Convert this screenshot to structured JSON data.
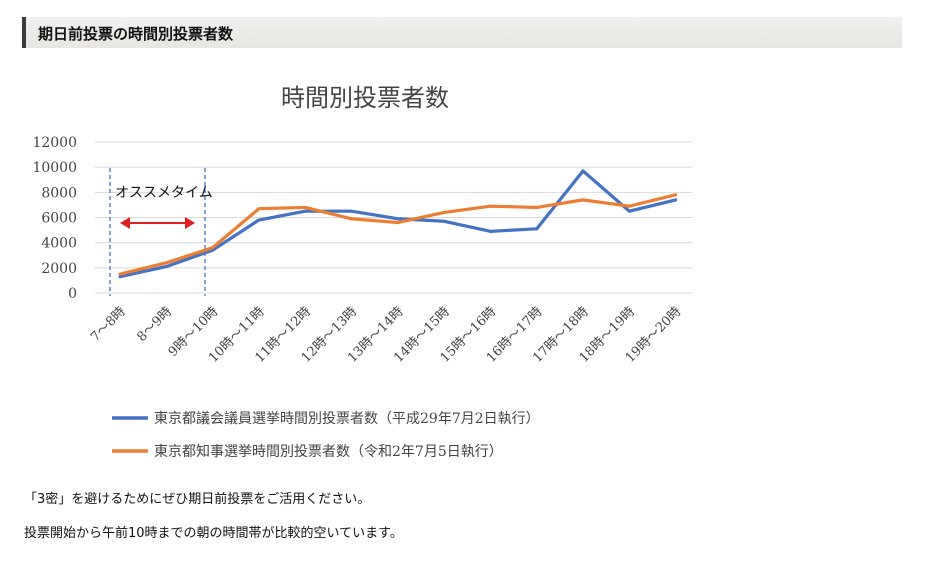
{
  "section": {
    "title": "期日前投票の時間別投票者数"
  },
  "chart_data": {
    "type": "line",
    "title": "時間別投票者数",
    "categories": [
      "7～8時",
      "8～9時",
      "9時～10時",
      "10時～11時",
      "11時～12時",
      "12時～13時",
      "13時～14時",
      "14時～15時",
      "15時～16時",
      "16時～17時",
      "17時～18時",
      "18時～19時",
      "19時～20時"
    ],
    "series": [
      {
        "name": "東京都議会議員選挙時間別投票者数（平成29年7月2日執行）",
        "color": "#4472c4",
        "values": [
          1300,
          2100,
          3400,
          5800,
          6500,
          6500,
          5900,
          5700,
          4900,
          5100,
          9700,
          6500,
          7400
        ]
      },
      {
        "name": "東京都知事選挙時間別投票者数（令和2年7月5日執行）",
        "color": "#ed7d31",
        "values": [
          1500,
          2400,
          3600,
          6700,
          6800,
          5900,
          5600,
          6400,
          6900,
          6800,
          7400,
          6900,
          7800
        ]
      }
    ],
    "yticks": [
      0,
      2000,
      4000,
      6000,
      8000,
      10000,
      12000
    ],
    "ylim": [
      0,
      12000
    ],
    "grid": true,
    "legend_position": "bottom",
    "annotation": {
      "text": "オススメタイム",
      "arrow_color": "#e02020",
      "dash_color": "#4472c4"
    }
  },
  "text": {
    "line1": "「3密」を避けるためにぜひ期日前投票をご活用ください。",
    "line2": "投票開始から午前10時までの朝の時間帯が比較的空いています。"
  }
}
